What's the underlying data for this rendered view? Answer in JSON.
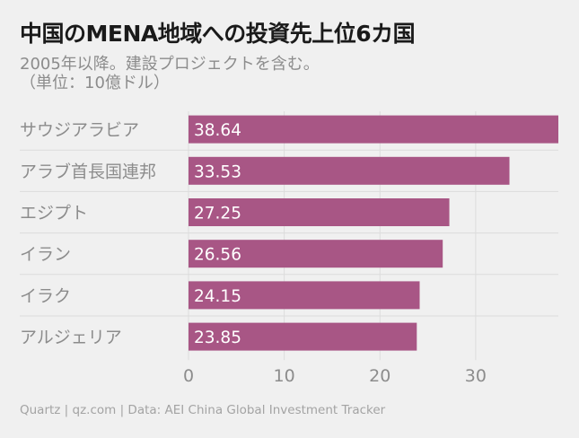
{
  "chart_data": {
    "type": "bar",
    "orientation": "horizontal",
    "title": "中国のMENA地域への投資先上位6カ国",
    "subtitle": "2005年以降。建設プロジェクトを含む。\n（単位：10億ドル）",
    "categories": [
      "サウジアラビア",
      "アラブ首長国連邦",
      "エジプト",
      "イラン",
      "イラク",
      "アルジェリア"
    ],
    "values": [
      38.64,
      33.53,
      27.25,
      26.56,
      24.15,
      23.85
    ],
    "value_labels": [
      "38.64",
      "33.53",
      "27.25",
      "26.56",
      "24.15",
      "23.85"
    ],
    "xlim": [
      0,
      38.64
    ],
    "xticks": [
      0,
      10,
      20,
      30
    ],
    "xtick_labels": [
      "0",
      "10",
      "20",
      "30"
    ],
    "grid": "vertical",
    "bar_color": "#a85685",
    "source": "Quartz | qz.com | Data: AEI China Global Investment Tracker"
  }
}
